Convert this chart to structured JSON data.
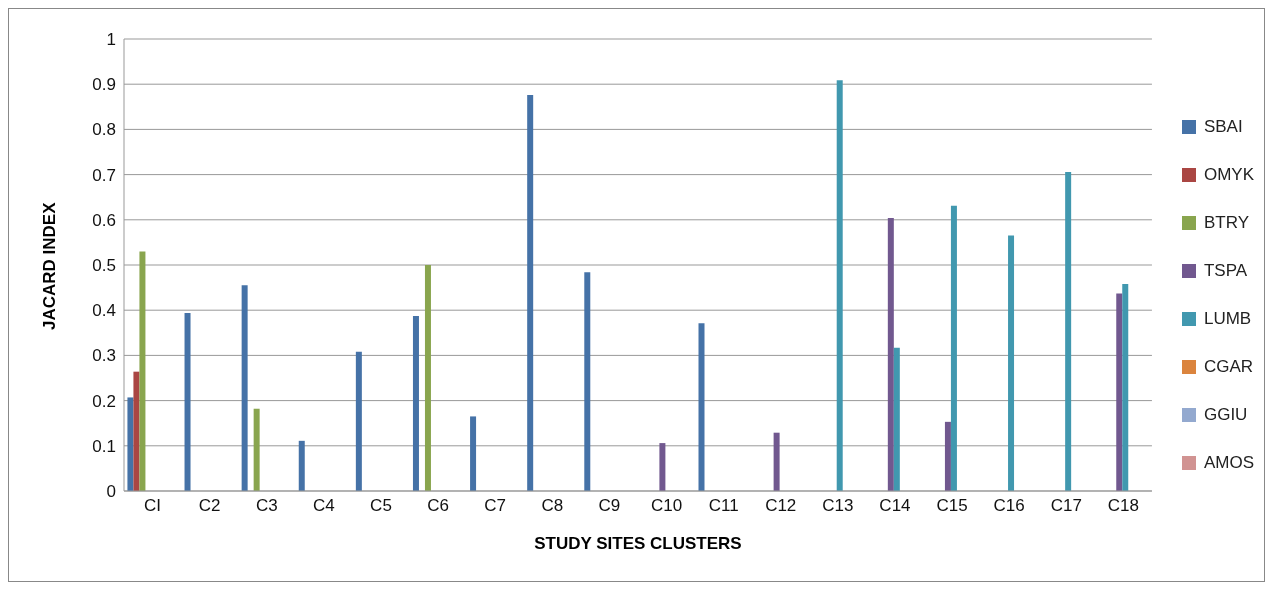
{
  "chart_data": {
    "type": "bar",
    "xlabel": "STUDY SITES CLUSTERS",
    "ylabel": "JACARD INDEX",
    "categories": [
      "CI",
      "C2",
      "C3",
      "C4",
      "C5",
      "C6",
      "C7",
      "C8",
      "C9",
      "C10",
      "C11",
      "C12",
      "C13",
      "C14",
      "C15",
      "C16",
      "C17",
      "C18"
    ],
    "series": [
      {
        "name": "SBAI",
        "color": "#4572a7",
        "values": [
          0.207,
          0.394,
          0.455,
          0.111,
          0.308,
          0.387,
          0.165,
          0.876,
          0.484,
          0,
          0.371,
          0,
          0,
          0,
          0,
          0,
          0,
          0
        ]
      },
      {
        "name": "OMYK",
        "color": "#aa4643",
        "values": [
          0.264,
          0,
          0,
          0,
          0,
          0,
          0,
          0,
          0,
          0,
          0,
          0,
          0,
          0,
          0,
          0,
          0,
          0
        ]
      },
      {
        "name": "BTRY",
        "color": "#89a54e",
        "values": [
          0.53,
          0,
          0.182,
          0,
          0,
          0.5,
          0,
          0,
          0,
          0,
          0,
          0,
          0,
          0,
          0,
          0,
          0,
          0
        ]
      },
      {
        "name": "TSPA",
        "color": "#71588f",
        "values": [
          0,
          0,
          0,
          0,
          0,
          0,
          0,
          0,
          0,
          0.106,
          0,
          0.129,
          0,
          0.604,
          0.153,
          0,
          0,
          0.437
        ]
      },
      {
        "name": "LUMB",
        "color": "#4198af",
        "values": [
          0,
          0,
          0,
          0,
          0,
          0,
          0,
          0,
          0,
          0,
          0,
          0,
          0.909,
          0.317,
          0.631,
          0.565,
          0.706,
          0.458
        ]
      },
      {
        "name": "CGAR",
        "color": "#db843d",
        "values": [
          0,
          0,
          0,
          0,
          0,
          0,
          0,
          0,
          0,
          0,
          0,
          0,
          0,
          0,
          0,
          0,
          0,
          0
        ]
      },
      {
        "name": "GGIU",
        "color": "#93a9cf",
        "values": [
          0,
          0,
          0,
          0,
          0,
          0,
          0,
          0,
          0,
          0,
          0,
          0,
          0,
          0,
          0,
          0,
          0,
          0
        ]
      },
      {
        "name": "AMOS",
        "color": "#d19392",
        "values": [
          0,
          0,
          0,
          0,
          0,
          0,
          0,
          0,
          0,
          0,
          0,
          0,
          0,
          0,
          0,
          0,
          0,
          0
        ]
      }
    ],
    "ylim": [
      0,
      1
    ],
    "yticks": [
      0,
      0.1,
      0.2,
      0.3,
      0.4,
      0.5,
      0.6,
      0.7,
      0.8,
      0.9,
      1
    ],
    "grid": "y",
    "legend": "right"
  }
}
